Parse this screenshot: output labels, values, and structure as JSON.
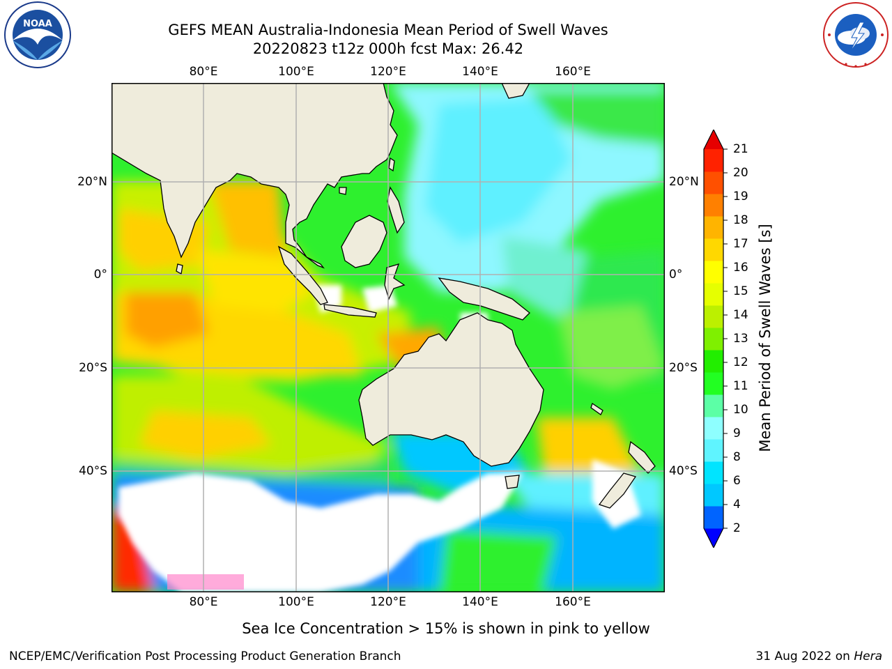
{
  "title": {
    "line1": "GEFS MEAN Australia-Indonesia Mean Period of Swell Waves",
    "line2": "20220823 t12z 000h fcst   Max: 26.42"
  },
  "logos": {
    "left": "noaa-logo",
    "left_text": "NOAA",
    "right": "national-weather-service-logo"
  },
  "map": {
    "lon_labels": [
      "80°E",
      "100°E",
      "120°E",
      "140°E",
      "160°E"
    ],
    "lat_labels": [
      "20°N",
      "0°",
      "20°S",
      "40°S"
    ],
    "colors": {
      "land": "#efecdc",
      "ocean_default": "#2ef02e",
      "no_data": "#ffffff",
      "gridline": "#b0b0b0"
    }
  },
  "colorbar": {
    "label": "Mean Period of Swell Waves [s]",
    "ticks": [
      "2",
      "4",
      "6",
      "8",
      "9",
      "10",
      "11",
      "12",
      "13",
      "14",
      "15",
      "16",
      "17",
      "18",
      "19",
      "20",
      "21"
    ],
    "colors": [
      "#0000ff",
      "#0064ff",
      "#00c8ff",
      "#00e4ff",
      "#5ff4ff",
      "#8effff",
      "#5cffa6",
      "#22ff22",
      "#22ee00",
      "#7ff000",
      "#bcf000",
      "#e6ff00",
      "#ffff00",
      "#ffd800",
      "#ffb400",
      "#ff8000",
      "#ff5000",
      "#ff2200",
      "#e60000"
    ]
  },
  "notes": {
    "sea_ice": "Sea Ice Concentration > 15% is shown in pink to yellow",
    "footer_left": "NCEP/EMC/Verification Post Processing Product Generation Branch",
    "footer_date": "31 Aug 2022",
    "footer_on": "on",
    "footer_host": "Hera"
  }
}
